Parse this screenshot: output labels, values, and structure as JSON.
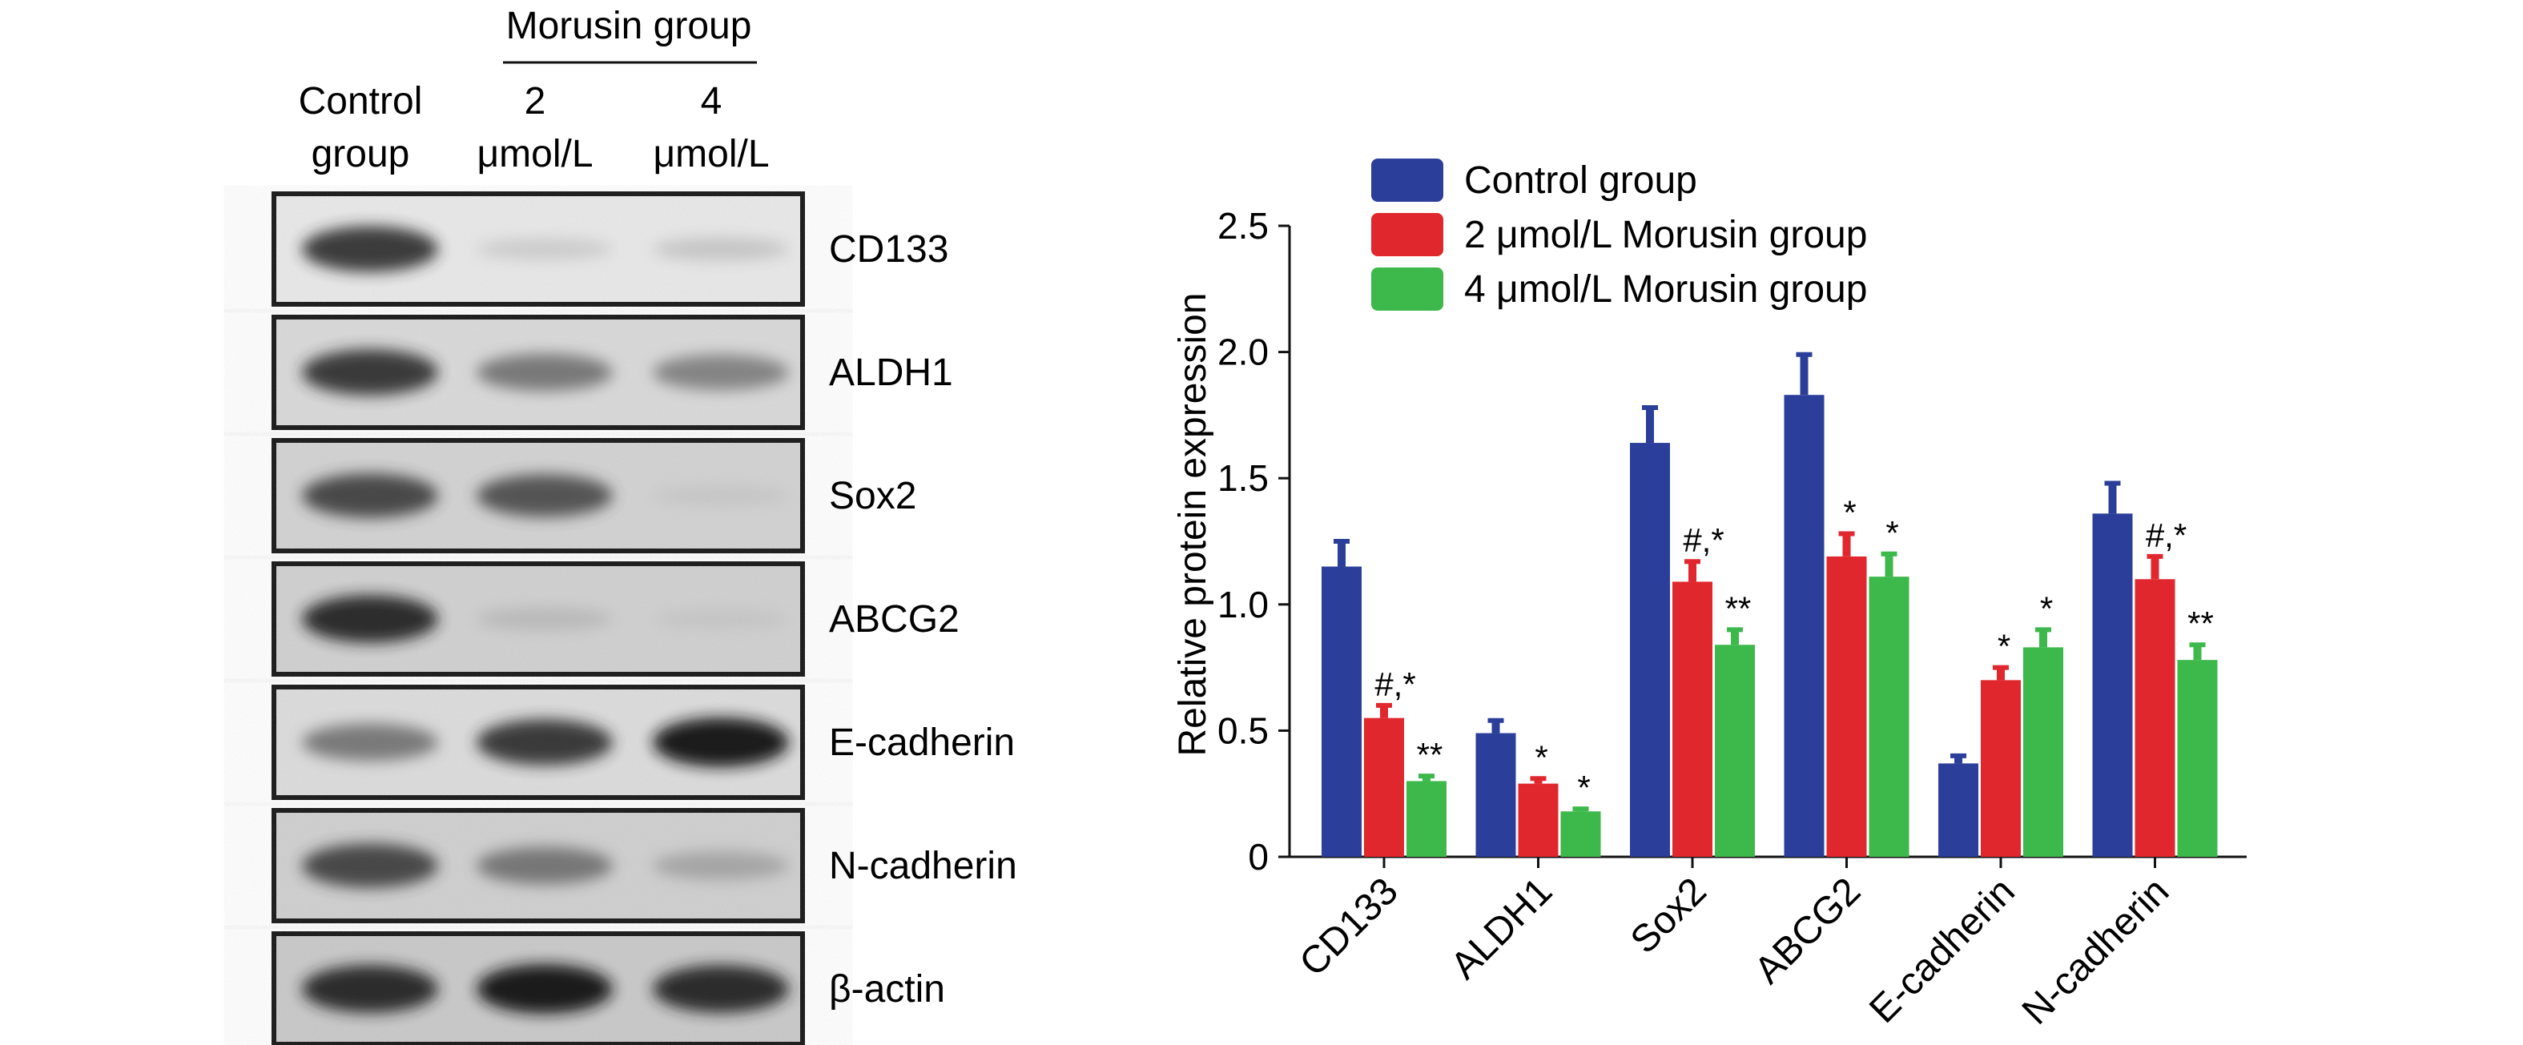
{
  "blot": {
    "group_header": "Morusin group",
    "lanes": [
      {
        "line1": "Control",
        "line2": "group"
      },
      {
        "line1": "2",
        "line2": "μmol/L"
      },
      {
        "line1": "4",
        "line2": "μmol/L"
      }
    ],
    "rows": [
      {
        "label": "CD133",
        "intensity": [
          0.85,
          0.15,
          0.2
        ]
      },
      {
        "label": "ALDH1",
        "intensity": [
          0.85,
          0.6,
          0.55
        ]
      },
      {
        "label": "Sox2",
        "intensity": [
          0.8,
          0.75,
          0.1
        ]
      },
      {
        "label": "ABCG2",
        "intensity": [
          0.9,
          0.2,
          0.1
        ]
      },
      {
        "label": "E-cadherin",
        "intensity": [
          0.6,
          0.85,
          0.95
        ]
      },
      {
        "label": "N-cadherin",
        "intensity": [
          0.8,
          0.6,
          0.35
        ]
      },
      {
        "label": "β-actin",
        "intensity": [
          0.9,
          0.95,
          0.9
        ]
      }
    ]
  },
  "chart_data": {
    "type": "bar",
    "title": "",
    "ylabel": "Relative protein expression",
    "xlabel": "",
    "ylim": [
      0,
      2.5
    ],
    "yticks": [
      0,
      0.5,
      1.0,
      1.5,
      2.0,
      2.5
    ],
    "ytick_labels": [
      "0",
      "0.5",
      "1.0",
      "1.5",
      "2.0",
      "2.5"
    ],
    "categories": [
      "CD133",
      "ALDH1",
      "Sox2",
      "ABCG2",
      "E-cadherin",
      "N-cadherin"
    ],
    "legend_position": "top",
    "series": [
      {
        "name": "Control group",
        "color": "#2b3f9a",
        "values": [
          1.15,
          0.49,
          1.64,
          1.83,
          0.37,
          1.36
        ],
        "errors": [
          0.1,
          0.05,
          0.14,
          0.16,
          0.03,
          0.12
        ],
        "annotations": [
          "",
          "",
          "",
          "",
          "",
          ""
        ]
      },
      {
        "name": "2 μmol/L Morusin group",
        "color": "#e0272d",
        "values": [
          0.55,
          0.29,
          1.09,
          1.19,
          0.7,
          1.1
        ],
        "errors": [
          0.05,
          0.02,
          0.08,
          0.09,
          0.05,
          0.09
        ],
        "annotations": [
          "#,*",
          "*",
          "#,*",
          "*",
          "*",
          "#,*"
        ]
      },
      {
        "name": "4 μmol/L Morusin group",
        "color": "#3db84a",
        "values": [
          0.3,
          0.18,
          0.84,
          1.11,
          0.83,
          0.78
        ],
        "errors": [
          0.02,
          0.01,
          0.06,
          0.09,
          0.07,
          0.06
        ],
        "annotations": [
          "**",
          "*",
          "**",
          "*",
          "*",
          "**"
        ]
      }
    ]
  }
}
